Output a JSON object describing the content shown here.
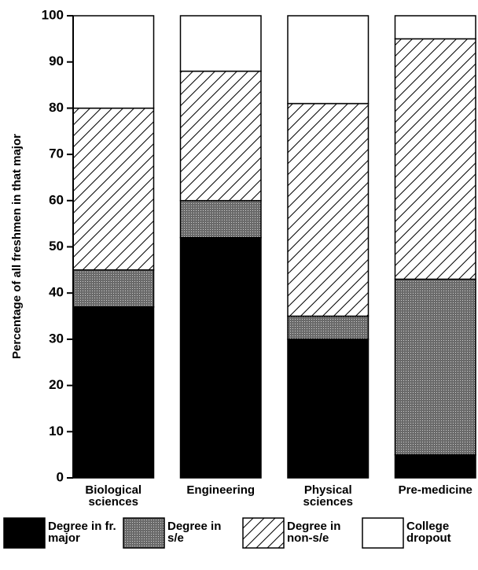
{
  "chart_data": {
    "type": "stacked-bar",
    "y_label": "Percentage of all freshmen in that major",
    "categories": [
      "Biological sciences",
      "Engineering",
      "Physical sciences",
      "Pre-medicine"
    ],
    "series": [
      {
        "name": "Degree in fr. major",
        "color": "#000000",
        "pattern": "solid",
        "values": [
          37,
          52,
          30,
          5
        ]
      },
      {
        "name": "Degree in s/e",
        "color": "#7a7a7a",
        "pattern": "dots",
        "values": [
          8,
          8,
          5,
          38
        ]
      },
      {
        "name": "Degree in non-s/e",
        "color": "#000000",
        "pattern": "hatch",
        "values": [
          35,
          28,
          46,
          52
        ]
      },
      {
        "name": "College dropout",
        "color": "#ffffff",
        "pattern": "solid",
        "values": [
          20,
          12,
          19,
          5
        ]
      }
    ],
    "ylim": [
      0,
      100
    ],
    "yticks": [
      0,
      10,
      20,
      30,
      40,
      50,
      60,
      70,
      80,
      90,
      100
    ]
  }
}
